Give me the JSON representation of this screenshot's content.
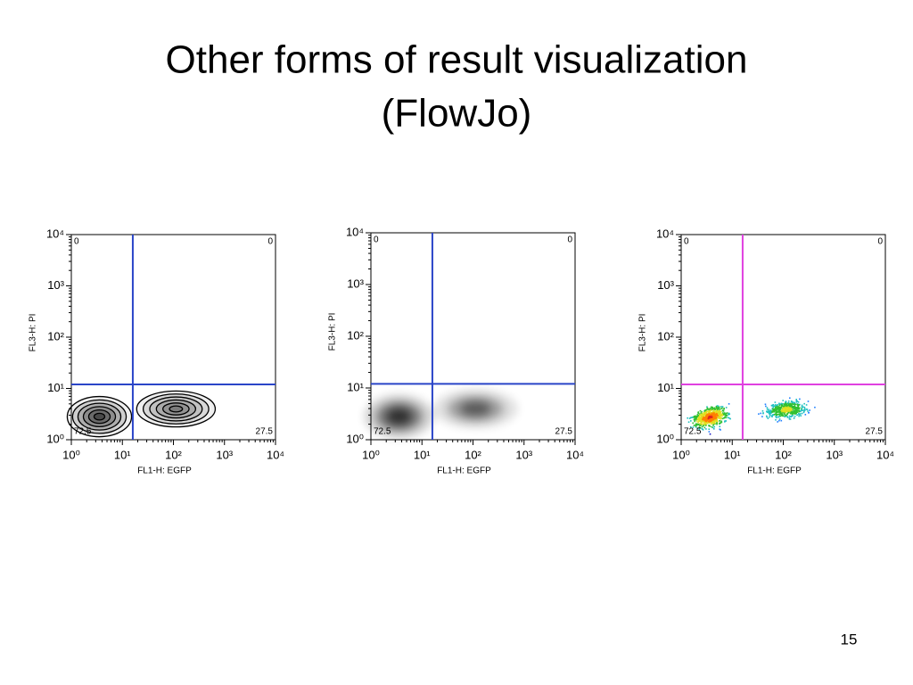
{
  "title_lines": [
    "Other forms of result visualization",
    "(FlowJo)"
  ],
  "page_number": "15",
  "chart_data": [
    {
      "type": "contour",
      "x_label": "FL1-H: EGFP",
      "y_label": "FL3-H: PI",
      "log_scale": true,
      "xlim": [
        1,
        10000
      ],
      "ylim": [
        1,
        10000
      ],
      "xticks": [
        {
          "value": 1,
          "label": "10⁰"
        },
        {
          "value": 10,
          "label": "10¹"
        },
        {
          "value": 100,
          "label": "10²"
        },
        {
          "value": 1000,
          "label": "10³"
        },
        {
          "value": 10000,
          "label": "10⁴"
        }
      ],
      "yticks": [
        {
          "value": 1,
          "label": "10⁰"
        },
        {
          "value": 10,
          "label": "10¹"
        },
        {
          "value": 100,
          "label": "10²"
        },
        {
          "value": 1000,
          "label": "10³"
        },
        {
          "value": 10000,
          "label": "10⁴"
        }
      ],
      "gate": {
        "x": 16,
        "y": 12,
        "color": "#2a45c8"
      },
      "quadrant_values": [
        0,
        0,
        72.5,
        27.5
      ]
    },
    {
      "type": "density",
      "x_label": "FL1-H: EGFP",
      "y_label": "FL3-H: PI",
      "log_scale": true,
      "xlim": [
        1,
        10000
      ],
      "ylim": [
        1,
        10000
      ],
      "xticks": [
        {
          "value": 1,
          "label": "10⁰"
        },
        {
          "value": 10,
          "label": "10¹"
        },
        {
          "value": 100,
          "label": "10²"
        },
        {
          "value": 1000,
          "label": "10³"
        },
        {
          "value": 10000,
          "label": "10⁴"
        }
      ],
      "yticks": [
        {
          "value": 1,
          "label": "10⁰"
        },
        {
          "value": 10,
          "label": "10¹"
        },
        {
          "value": 100,
          "label": "10²"
        },
        {
          "value": 1000,
          "label": "10³"
        },
        {
          "value": 10000,
          "label": "10⁴"
        }
      ],
      "gate": {
        "x": 16,
        "y": 12,
        "color": "#2a45c8"
      },
      "quadrant_values": [
        0,
        0,
        72.5,
        27.5
      ]
    },
    {
      "type": "pseudocolor",
      "x_label": "FL1-H: EGFP",
      "y_label": "FL3-H: PI",
      "log_scale": true,
      "xlim": [
        1,
        10000
      ],
      "ylim": [
        1,
        10000
      ],
      "xticks": [
        {
          "value": 1,
          "label": "10⁰"
        },
        {
          "value": 10,
          "label": "10¹"
        },
        {
          "value": 100,
          "label": "10²"
        },
        {
          "value": 1000,
          "label": "10³"
        },
        {
          "value": 10000,
          "label": "10⁴"
        }
      ],
      "yticks": [
        {
          "value": 1,
          "label": "10⁰"
        },
        {
          "value": 10,
          "label": "10¹"
        },
        {
          "value": 100,
          "label": "10²"
        },
        {
          "value": 1000,
          "label": "10³"
        },
        {
          "value": 10000,
          "label": "10⁴"
        }
      ],
      "gate": {
        "x": 16,
        "y": 12,
        "color": "#e040e0"
      },
      "quadrant_values": [
        0,
        0,
        72.5,
        27.5
      ]
    }
  ]
}
